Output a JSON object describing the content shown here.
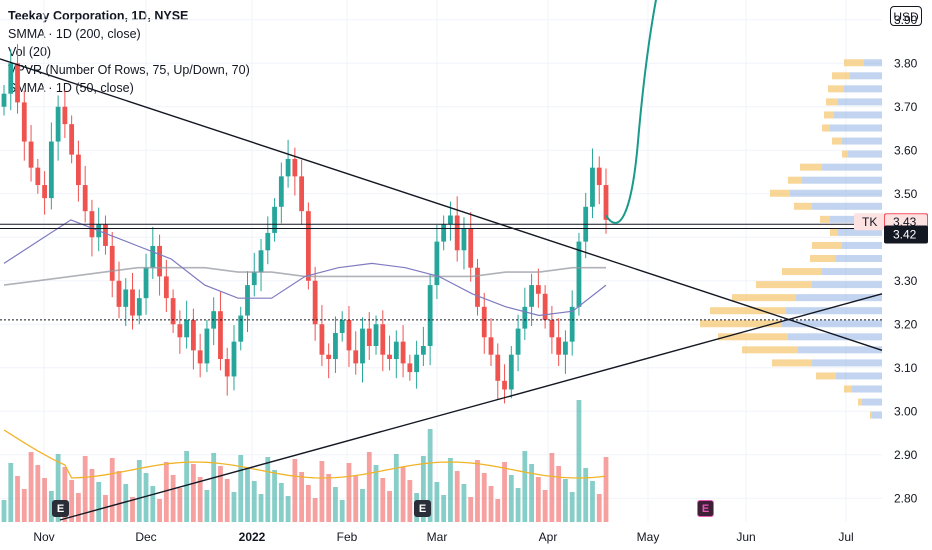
{
  "legend": {
    "title": "Teekay Corporation, 1D, NYSE",
    "lines": [
      "SMMA · 1D (200, close)",
      "Vol (20)",
      "VPVR (Number Of Rows, 75, Up/Down, 70)",
      "SMMA · 1D (50, close)"
    ]
  },
  "currency": "USD",
  "price_badges": {
    "ticker": "TK",
    "last": "3.43",
    "current": "3.42"
  },
  "event_markers": [
    "E",
    "E",
    "E"
  ],
  "colors": {
    "up": "#26a69a",
    "down": "#ef5350",
    "sma200": "#9598a1",
    "sma50": "#7e7ac0",
    "vol_ma": "#f0b429",
    "vpvr_up": "#8fb1e2",
    "vpvr_down": "#f5c56b",
    "projection": "#1a9a8a",
    "trendline": "#131722",
    "badge_red": "#f7525f",
    "badge_dark": "#131722",
    "ticker_bg": "#fde2e2"
  },
  "chart_data": {
    "type": "candlestick",
    "x_ticks": [
      "Nov",
      "Dec",
      "2022",
      "Feb",
      "Mar",
      "Apr",
      "May",
      "Jun",
      "Jul"
    ],
    "y_ticks": [
      "3.90",
      "3.80",
      "3.70",
      "3.60",
      "3.50",
      "3.30",
      "3.20",
      "3.10",
      "3.00",
      "2.90",
      "2.80"
    ],
    "ylim": [
      2.75,
      3.95
    ],
    "horizontal_levels": [
      3.43,
      3.42,
      3.21
    ],
    "trendlines": [
      {
        "from": [
          "Oct",
          3.81
        ],
        "to": [
          "Jul",
          3.14
        ]
      },
      {
        "from": [
          "Nov",
          2.75
        ],
        "to": [
          "Jul",
          3.27
        ]
      }
    ],
    "sma200_approx": [
      3.29,
      3.3,
      3.31,
      3.32,
      3.33,
      3.33,
      3.33,
      3.32,
      3.32,
      3.31,
      3.31,
      3.31,
      3.31,
      3.31,
      3.31,
      3.32,
      3.32,
      3.33,
      3.33
    ],
    "sma50_approx": [
      3.34,
      3.39,
      3.44,
      3.41,
      3.38,
      3.35,
      3.29,
      3.26,
      3.26,
      3.31,
      3.33,
      3.34,
      3.33,
      3.31,
      3.27,
      3.24,
      3.22,
      3.23,
      3.29
    ],
    "candle_closes_approx": [
      3.73,
      3.8,
      3.71,
      3.62,
      3.56,
      3.52,
      3.49,
      3.62,
      3.7,
      3.66,
      3.59,
      3.52,
      3.46,
      3.4,
      3.43,
      3.38,
      3.3,
      3.24,
      3.28,
      3.22,
      3.26,
      3.33,
      3.38,
      3.31,
      3.26,
      3.2,
      3.17,
      3.21,
      3.14,
      3.11,
      3.19,
      3.23,
      3.12,
      3.08,
      3.16,
      3.22,
      3.29,
      3.32,
      3.37,
      3.41,
      3.47,
      3.54,
      3.58,
      3.54,
      3.46,
      3.3,
      3.2,
      3.13,
      3.12,
      3.18,
      3.21,
      3.14,
      3.11,
      3.19,
      3.15,
      3.2,
      3.13,
      3.12,
      3.16,
      3.11,
      3.09,
      3.13,
      3.15,
      3.29,
      3.39,
      3.43,
      3.45,
      3.37,
      3.42,
      3.33,
      3.24,
      3.17,
      3.13,
      3.07,
      3.05,
      3.13,
      3.19,
      3.24,
      3.29,
      3.27,
      3.21,
      3.17,
      3.13,
      3.16,
      3.24,
      3.39,
      3.47,
      3.56,
      3.52,
      3.44
    ]
  }
}
